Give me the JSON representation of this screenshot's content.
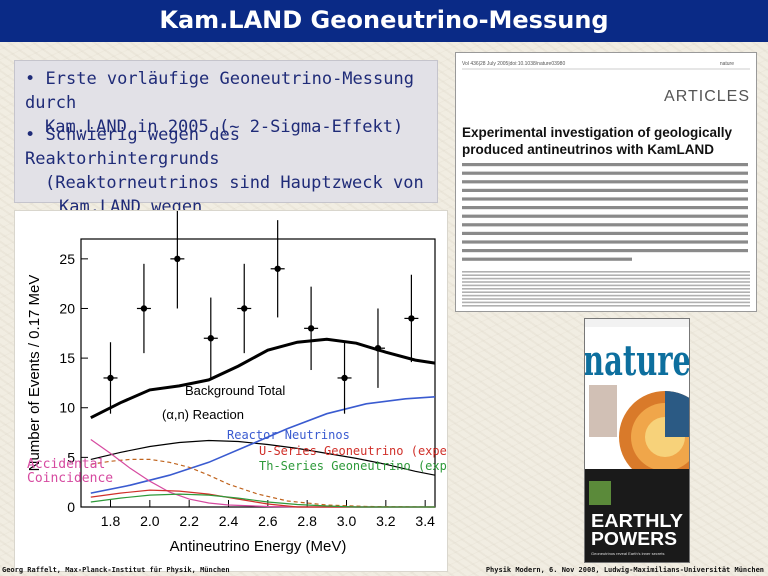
{
  "slide": {
    "title": "Kam.LAND Geoneutrino-Messung",
    "bullets": [
      {
        "line1": "Erste vorläufige Geoneutrino-Messung durch",
        "line2": "Kam.LAND in 2005 (~ 2-Sigma-Effekt)",
        "line3": ""
      },
      {
        "line1": "Schwierig wegen des Reaktorhintergrunds",
        "line2": "(Reaktorneutrinos sind Hauptzweck von",
        "line3": "Kam.LAND wegen Neutrinooszillationen)"
      }
    ]
  },
  "chart_data": {
    "type": "line",
    "xlabel": "Antineutrino Energy (MeV)",
    "ylabel": "Number of Events / 0.17 MeV",
    "xlim": [
      1.65,
      3.45
    ],
    "ylim": [
      0,
      27
    ],
    "xticks": [
      1.8,
      2.0,
      2.2,
      2.4,
      2.6,
      2.8,
      3.0,
      3.2,
      3.4
    ],
    "yticks": [
      0,
      5,
      10,
      15,
      20,
      25
    ],
    "annotations": [
      {
        "text": "Background Total",
        "color": "#000000"
      },
      {
        "text": "(α,n) Reaction",
        "color": "#000000"
      },
      {
        "text": "Reactor Neutrinos",
        "color": "#3a5bd0"
      },
      {
        "text": "U-Series Geoneutrino (expected)",
        "color": "#d0302a"
      },
      {
        "text": "Th-Series Geoneutrino (expected)",
        "color": "#2e9a3a"
      },
      {
        "text": "Accidental",
        "color": "#d64aa0"
      },
      {
        "text": "Coincidence",
        "color": "#d64aa0"
      }
    ],
    "points": {
      "x": [
        1.8,
        1.97,
        2.14,
        2.31,
        2.48,
        2.65,
        2.82,
        2.99,
        3.16,
        3.33
      ],
      "y": [
        13,
        20,
        25,
        17,
        20,
        24,
        18,
        13,
        16,
        19
      ],
      "err": [
        3.6,
        4.5,
        5.0,
        4.1,
        4.5,
        4.9,
        4.2,
        3.6,
        4.0,
        4.4
      ]
    },
    "series": [
      {
        "values_x": [
          1.7,
          1.85,
          2.0,
          2.15,
          2.3,
          2.45,
          2.6,
          2.75,
          2.9,
          3.05,
          3.2,
          3.35,
          3.45
        ],
        "values_y": [
          9.0,
          10.5,
          11.8,
          12.2,
          12.8,
          14.2,
          15.8,
          16.6,
          16.9,
          16.5,
          15.6,
          14.8,
          14.5
        ],
        "color": "#000000",
        "width": 3,
        "style": "solid"
      },
      {
        "values_x": [
          1.7,
          1.85,
          2.0,
          2.15,
          2.3,
          2.45,
          2.6,
          2.75,
          2.9,
          3.05,
          3.2,
          3.35,
          3.45
        ],
        "values_y": [
          4.8,
          5.5,
          6.1,
          6.5,
          6.7,
          6.6,
          6.3,
          5.9,
          5.4,
          4.9,
          4.3,
          3.6,
          3.2
        ],
        "color": "#000000",
        "width": 1.2,
        "style": "solid"
      },
      {
        "values_x": [
          1.7,
          1.9,
          2.1,
          2.3,
          2.5,
          2.7,
          2.9,
          3.1,
          3.3,
          3.45
        ],
        "values_y": [
          1.4,
          2.2,
          3.2,
          4.5,
          6.2,
          7.9,
          9.4,
          10.4,
          10.9,
          11.1
        ],
        "color": "#3a5bd0",
        "width": 1.6,
        "style": "solid"
      },
      {
        "values_x": [
          1.7,
          1.8,
          1.9,
          2.0,
          2.1,
          2.2,
          2.3,
          2.4,
          2.55,
          2.7,
          2.9,
          3.1,
          3.45
        ],
        "values_y": [
          4.3,
          4.6,
          4.8,
          4.8,
          4.5,
          4.0,
          3.2,
          2.3,
          1.3,
          0.6,
          0.2,
          0.05,
          0.0
        ],
        "color": "#c0641e",
        "width": 1.2,
        "style": "dashed"
      },
      {
        "values_x": [
          1.7,
          1.8,
          1.9,
          2.0,
          2.1,
          2.2,
          2.3,
          2.4,
          2.6,
          2.8,
          3.0,
          3.45
        ],
        "values_y": [
          6.8,
          5.4,
          3.9,
          2.6,
          1.5,
          0.8,
          0.4,
          0.2,
          0.05,
          0.0,
          0.0,
          0.0
        ],
        "color": "#d64aa0",
        "width": 1.2,
        "style": "solid"
      },
      {
        "values_x": [
          1.7,
          1.85,
          2.0,
          2.15,
          2.3,
          2.45,
          2.6,
          2.75,
          2.9,
          3.05,
          3.2,
          3.45
        ],
        "values_y": [
          1.0,
          1.4,
          1.7,
          1.6,
          1.3,
          0.8,
          0.3,
          0.0,
          0.0,
          0.0,
          0.0,
          0.0
        ],
        "color": "#d0302a",
        "width": 1.2,
        "style": "solid"
      },
      {
        "values_x": [
          1.7,
          1.85,
          2.0,
          2.15,
          2.3,
          2.45,
          2.6,
          2.75,
          2.9,
          3.05,
          3.2,
          3.45
        ],
        "values_y": [
          0.5,
          0.9,
          1.2,
          1.3,
          1.2,
          0.9,
          0.5,
          0.25,
          0.1,
          0.0,
          0.0,
          0.0
        ],
        "color": "#2e9a3a",
        "width": 1.2,
        "style": "solid"
      }
    ]
  },
  "article": {
    "journal_header": "Vol 436|28 July 2005|doi:10.1038/nature03980",
    "journal_tag": "nature",
    "section": "ARTICLES",
    "title_line1": "Experimental investigation of geologically",
    "title_line2": "produced antineutrinos with KamLAND"
  },
  "nature_cover": {
    "masthead": "nature",
    "headline_line1": "EARTHLY",
    "headline_line2": "POWERS",
    "subheadline": "Geoneutrinos reveal Earth's inner secrets",
    "colors": {
      "masthead": "#0d6f9e",
      "headline": "#ffffff"
    }
  },
  "footer": {
    "left": "Georg Raffelt, Max-Planck-Institut für Physik, München",
    "right": "Physik Modern, 6. Nov 2008, Ludwig-Maximilians-Universität München"
  },
  "colors": {
    "title_bar": "#0a2a86",
    "bullet_text": "#1f2b78",
    "reactor": "#3a5bd0",
    "u_series": "#d0302a",
    "th_series": "#2e9a3a",
    "accidental": "#d64aa0"
  }
}
